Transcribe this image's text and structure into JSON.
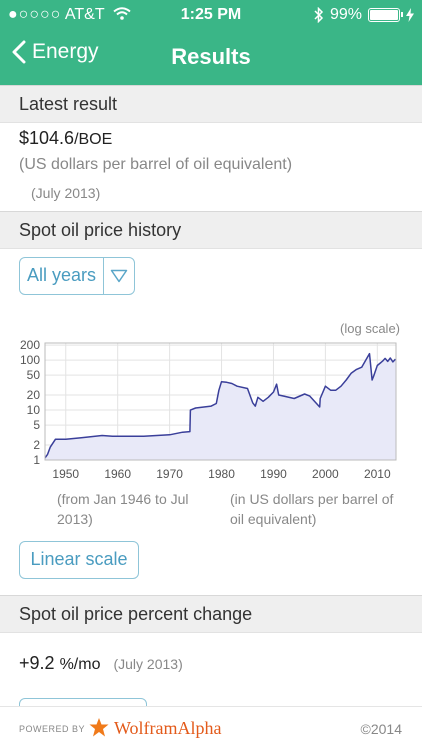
{
  "status_bar": {
    "signal": "●○○○○",
    "carrier": "AT&T",
    "time": "1:25 PM",
    "battery": "99%"
  },
  "nav": {
    "back_label": "Energy",
    "title": "Results"
  },
  "latest_result": {
    "heading": "Latest result",
    "value": "$104.6",
    "unit": "/BOE",
    "description": "(US dollars per barrel of oil equivalent)",
    "date": "(July 2013)"
  },
  "history": {
    "heading": "Spot oil price history",
    "dropdown": "All years",
    "scale_note": "(log scale)",
    "caption_left": "(from Jan 1946 to Jul 2013)",
    "caption_right": "(in US dollars per barrel of oil equivalent)",
    "scale_button": "Linear scale"
  },
  "percent_change": {
    "heading": "Spot oil price percent change",
    "value": "+9.2",
    "unit": "%/mo",
    "date": "(July 2013)"
  },
  "footer": {
    "powered_by": "POWERED BY",
    "brand": "WolframAlpha",
    "copyright": "©2014"
  },
  "colors": {
    "header": "#3ab687",
    "accent": "#4a9cc0",
    "series": "#3a3f9a",
    "fill": "#e8e9f8"
  },
  "chart_data": {
    "type": "line",
    "yscale": "log",
    "xlim": [
      1946,
      2013.6
    ],
    "ylim": [
      1,
      220
    ],
    "xticks": [
      1950,
      1960,
      1970,
      1980,
      1990,
      2000,
      2010
    ],
    "yticks": [
      1,
      2,
      5,
      10,
      20,
      50,
      100,
      200
    ],
    "ytick_labels": [
      "1",
      "2",
      "5",
      "10",
      "20",
      "50",
      "100",
      "200"
    ],
    "grid": true,
    "series": [
      {
        "x": [
          1946,
          1946.5,
          1947,
          1948,
          1949,
          1950,
          1953,
          1957,
          1959,
          1965,
          1970,
          1972.5,
          1973.9,
          1974,
          1975,
          1978,
          1979,
          1979.5,
          1980,
          1981,
          1982,
          1983,
          1985,
          1986,
          1986.5,
          1987,
          1988,
          1989,
          1990,
          1990.6,
          1991,
          1992,
          1994,
          1996,
          1997,
          1998.9,
          1999,
          2000,
          2001,
          2002,
          2003,
          2004,
          2005,
          2006,
          2007,
          2008.5,
          2009,
          2009.3,
          2010,
          2011,
          2011.5,
          2012,
          2012.5,
          2013,
          2013.5
        ],
        "y": [
          1.1,
          1.3,
          1.8,
          2.6,
          2.6,
          2.6,
          2.8,
          3.1,
          3.0,
          3.0,
          3.2,
          3.6,
          3.7,
          10.0,
          11.0,
          12.0,
          13.5,
          25,
          37,
          36,
          34,
          30,
          27,
          14,
          12,
          18,
          15,
          18,
          23,
          33,
          20,
          19,
          17,
          21,
          19,
          11.5,
          17,
          30,
          25,
          25,
          30,
          40,
          55,
          65,
          72,
          135,
          40,
          48,
          78,
          95,
          108,
          94,
          110,
          92,
          104.6
        ]
      }
    ]
  }
}
